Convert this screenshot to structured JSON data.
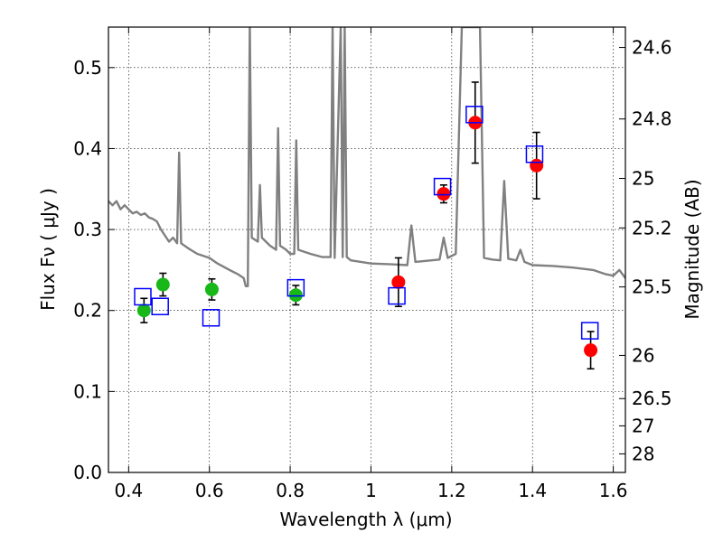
{
  "chart_data": {
    "type": "scatter",
    "xlabel": "Wavelength  λ (μm)",
    "ylabel_left": "Flux  Fν  ( μJy )",
    "ylabel_right": "Magnitude (AB)",
    "xlim": [
      0.35,
      1.63
    ],
    "ylim": [
      0.0,
      0.55
    ],
    "grid": true,
    "x_ticks": [
      {
        "v": 0.4,
        "label": "0.4"
      },
      {
        "v": 0.6,
        "label": "0.6"
      },
      {
        "v": 0.8,
        "label": "0.8"
      },
      {
        "v": 1.0,
        "label": "1"
      },
      {
        "v": 1.2,
        "label": "1.2"
      },
      {
        "v": 1.4,
        "label": "1.4"
      },
      {
        "v": 1.6,
        "label": "1.6"
      }
    ],
    "y_ticks": [
      {
        "v": 0.0,
        "label": "0.0"
      },
      {
        "v": 0.1,
        "label": "0.1"
      },
      {
        "v": 0.2,
        "label": "0.2"
      },
      {
        "v": 0.3,
        "label": "0.3"
      },
      {
        "v": 0.4,
        "label": "0.4"
      },
      {
        "v": 0.5,
        "label": "0.5"
      }
    ],
    "right_ticks": [
      {
        "v": 24.6,
        "label": "24.6"
      },
      {
        "v": 24.8,
        "label": "24.8"
      },
      {
        "v": 25.0,
        "label": "25"
      },
      {
        "v": 25.2,
        "label": "25.2"
      },
      {
        "v": 25.5,
        "label": "25.5"
      },
      {
        "v": 26.0,
        "label": "26"
      },
      {
        "v": 26.5,
        "label": "26.5"
      },
      {
        "v": 27.0,
        "label": "27"
      },
      {
        "v": 28.0,
        "label": "28"
      }
    ],
    "series": [
      {
        "kind": "line",
        "color": "#808080",
        "points": [
          [
            0.35,
            0.335
          ],
          [
            0.36,
            0.33
          ],
          [
            0.37,
            0.335
          ],
          [
            0.38,
            0.325
          ],
          [
            0.39,
            0.33
          ],
          [
            0.4,
            0.325
          ],
          [
            0.41,
            0.32
          ],
          [
            0.42,
            0.322
          ],
          [
            0.43,
            0.318
          ],
          [
            0.44,
            0.32
          ],
          [
            0.45,
            0.315
          ],
          [
            0.46,
            0.313
          ],
          [
            0.47,
            0.31
          ],
          [
            0.48,
            0.3
          ],
          [
            0.5,
            0.285
          ],
          [
            0.51,
            0.29
          ],
          [
            0.52,
            0.283
          ],
          [
            0.525,
            0.395
          ],
          [
            0.53,
            0.283
          ],
          [
            0.55,
            0.276
          ],
          [
            0.57,
            0.27
          ],
          [
            0.6,
            0.265
          ],
          [
            0.62,
            0.258
          ],
          [
            0.65,
            0.25
          ],
          [
            0.67,
            0.245
          ],
          [
            0.685,
            0.24
          ],
          [
            0.69,
            0.23
          ],
          [
            0.695,
            0.23
          ],
          [
            0.7,
            0.555
          ],
          [
            0.705,
            0.29
          ],
          [
            0.72,
            0.285
          ],
          [
            0.725,
            0.355
          ],
          [
            0.73,
            0.29
          ],
          [
            0.75,
            0.28
          ],
          [
            0.765,
            0.275
          ],
          [
            0.77,
            0.425
          ],
          [
            0.775,
            0.28
          ],
          [
            0.79,
            0.275
          ],
          [
            0.8,
            0.27
          ],
          [
            0.81,
            0.27
          ],
          [
            0.815,
            0.41
          ],
          [
            0.82,
            0.275
          ],
          [
            0.85,
            0.27
          ],
          [
            0.88,
            0.266
          ],
          [
            0.9,
            0.266
          ],
          [
            0.905,
            0.55
          ],
          [
            0.91,
            0.265
          ],
          [
            0.925,
            0.55
          ],
          [
            0.93,
            0.266
          ],
          [
            0.935,
            0.55
          ],
          [
            0.94,
            0.266
          ],
          [
            0.95,
            0.262
          ],
          [
            1.0,
            0.258
          ],
          [
            1.05,
            0.257
          ],
          [
            1.09,
            0.256
          ],
          [
            1.1,
            0.305
          ],
          [
            1.11,
            0.26
          ],
          [
            1.15,
            0.262
          ],
          [
            1.17,
            0.263
          ],
          [
            1.18,
            0.29
          ],
          [
            1.19,
            0.265
          ],
          [
            1.21,
            0.27
          ],
          [
            1.225,
            0.55
          ],
          [
            1.27,
            0.55
          ],
          [
            1.28,
            0.265
          ],
          [
            1.3,
            0.263
          ],
          [
            1.32,
            0.262
          ],
          [
            1.33,
            0.36
          ],
          [
            1.34,
            0.264
          ],
          [
            1.36,
            0.262
          ],
          [
            1.37,
            0.275
          ],
          [
            1.38,
            0.26
          ],
          [
            1.4,
            0.256
          ],
          [
            1.45,
            0.255
          ],
          [
            1.5,
            0.253
          ],
          [
            1.55,
            0.25
          ],
          [
            1.58,
            0.245
          ],
          [
            1.6,
            0.243
          ],
          [
            1.615,
            0.25
          ],
          [
            1.63,
            0.24
          ]
        ]
      },
      {
        "kind": "points",
        "marker": "circle",
        "color": "#18b818",
        "points": [
          {
            "x": 0.438,
            "y": 0.2,
            "err": 0.015
          },
          {
            "x": 0.485,
            "y": 0.232,
            "err": 0.014
          },
          {
            "x": 0.606,
            "y": 0.226,
            "err": 0.013
          },
          {
            "x": 0.814,
            "y": 0.219,
            "err": 0.012
          }
        ]
      },
      {
        "kind": "points",
        "marker": "circle",
        "color": "#ff0000",
        "points": [
          {
            "x": 1.068,
            "y": 0.235,
            "err": 0.03
          },
          {
            "x": 1.18,
            "y": 0.344,
            "err": 0.011
          },
          {
            "x": 1.258,
            "y": 0.432,
            "err": 0.05
          },
          {
            "x": 1.41,
            "y": 0.379,
            "err": 0.041
          },
          {
            "x": 1.544,
            "y": 0.151,
            "err": 0.023
          }
        ]
      },
      {
        "kind": "points",
        "marker": "square",
        "color": "#0000ff",
        "points": [
          {
            "x": 0.435,
            "y": 0.217
          },
          {
            "x": 0.478,
            "y": 0.205
          },
          {
            "x": 0.604,
            "y": 0.191
          },
          {
            "x": 0.814,
            "y": 0.228
          },
          {
            "x": 1.064,
            "y": 0.218
          },
          {
            "x": 1.177,
            "y": 0.353
          },
          {
            "x": 1.256,
            "y": 0.442
          },
          {
            "x": 1.405,
            "y": 0.393
          },
          {
            "x": 1.542,
            "y": 0.175
          }
        ]
      }
    ]
  }
}
